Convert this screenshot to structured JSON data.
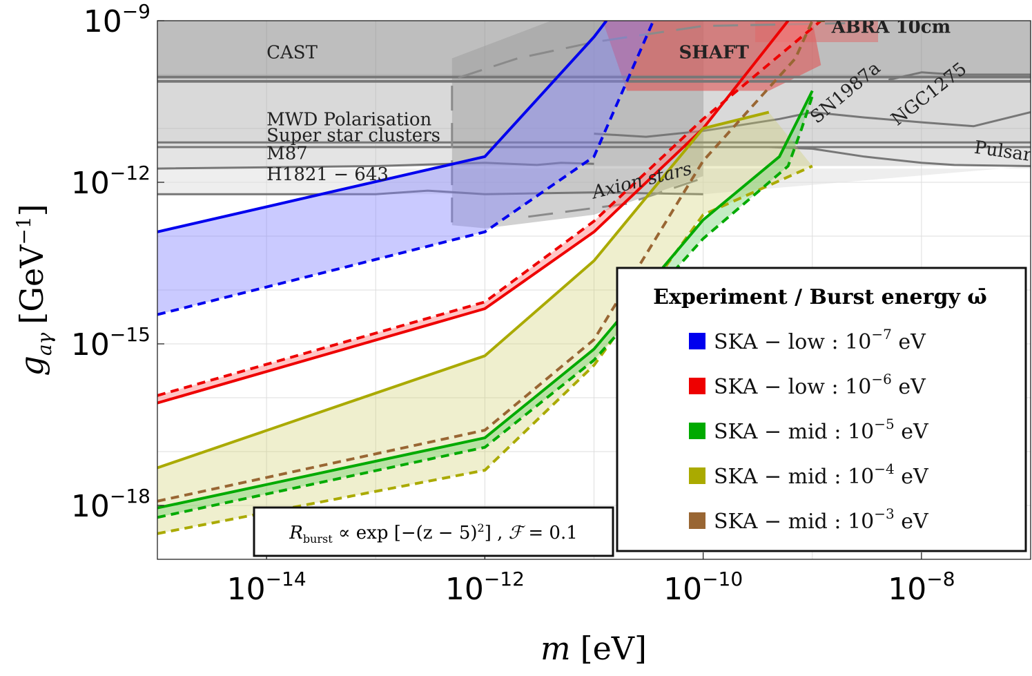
{
  "chart_data": {
    "type": "line",
    "xscale": "log",
    "yscale": "log",
    "xlim": [
      1e-15,
      1e-07
    ],
    "ylim": [
      1e-19,
      1e-09
    ],
    "xlabel_var": "m",
    "xlabel_unit": "[eV]",
    "ylabel_var": "g",
    "ylabel_sub": "aγ",
    "ylabel_unit": "[GeV",
    "ylabel_unit_sup": "−1",
    "ylabel_unit_close": "]",
    "xticks": [
      {
        "value": 1e-14,
        "base": "10",
        "exp": "−14"
      },
      {
        "value": 1e-12,
        "base": "10",
        "exp": "−12"
      },
      {
        "value": 1e-10,
        "base": "10",
        "exp": "−10"
      },
      {
        "value": 1e-08,
        "base": "10",
        "exp": "−8"
      }
    ],
    "yticks": [
      {
        "value": 1e-09,
        "base": "10",
        "exp": "−9"
      },
      {
        "value": 1e-12,
        "base": "10",
        "exp": "−12"
      },
      {
        "value": 1e-15,
        "base": "10",
        "exp": "−15"
      },
      {
        "value": 1e-18,
        "base": "10",
        "exp": "−18"
      }
    ],
    "legend": {
      "title": "Experiment / Burst energy ω̄",
      "position": "lower-right",
      "entries": [
        {
          "label": "SKA − low : 10",
          "exp": "−7",
          "unit": " eV",
          "color": "#0000ee"
        },
        {
          "label": "SKA − low : 10",
          "exp": "−6",
          "unit": " eV",
          "color": "#ee0000"
        },
        {
          "label": "SKA − mid : 10",
          "exp": "−5",
          "unit": " eV",
          "color": "#00aa00"
        },
        {
          "label": "SKA − mid : 10",
          "exp": "−4",
          "unit": " eV",
          "color": "#aaaa00"
        },
        {
          "label": "SKA − mid : 10",
          "exp": "−3",
          "unit": " eV",
          "color": "#996633"
        }
      ]
    },
    "annotation": {
      "R": "R",
      "R_sub": "burst",
      "rest": " ∝ exp [−(z − 5)",
      "sq": "2",
      "close": "]  ,  ",
      "F": "ℱ",
      "Frest": " = 0.1"
    },
    "series": [
      {
        "name": "SKA − low : 10^−7 eV",
        "color": "#0000ee",
        "style": "solid",
        "x": [
          1e-15,
          1e-12,
          1e-11,
          1.3e-11
        ],
        "y": [
          1.2e-13,
          3e-12,
          5e-10,
          1e-09
        ]
      },
      {
        "name": "SKA − low : 10^−7 eV",
        "color": "#0000ee",
        "style": "dashed",
        "x": [
          1e-15,
          1e-12,
          1e-11,
          3.5e-11
        ],
        "y": [
          3.5e-15,
          1.2e-13,
          3e-12,
          1e-09
        ]
      },
      {
        "name": "SKA − low : 10^−6 eV",
        "color": "#ee0000",
        "style": "solid",
        "x": [
          1e-15,
          1e-12,
          1e-11,
          1e-10,
          6e-10
        ],
        "y": [
          8e-17,
          4.5e-15,
          1.2e-13,
          1e-11,
          1e-09
        ]
      },
      {
        "name": "SKA − low : 10^−6 eV",
        "color": "#ee0000",
        "style": "dashed",
        "x": [
          1e-15,
          1e-12,
          1e-11,
          1e-10,
          1.2e-09
        ],
        "y": [
          1.1e-16,
          6e-15,
          1.9e-13,
          1.5e-11,
          1e-09
        ]
      },
      {
        "name": "SKA − mid : 10^−4 eV",
        "color": "#aaaa00",
        "style": "solid",
        "x": [
          1e-15,
          1e-12,
          1e-11,
          1e-10,
          4e-10
        ],
        "y": [
          5e-18,
          6e-16,
          3.5e-14,
          1e-11,
          2e-11
        ]
      },
      {
        "name": "SKA − mid : 10^−4 eV",
        "color": "#aaaa00",
        "style": "dashed",
        "x": [
          1e-15,
          1e-12,
          1e-11,
          1e-10,
          1e-09
        ],
        "y": [
          3e-19,
          4.5e-18,
          4e-16,
          2.5e-13,
          2e-12
        ]
      },
      {
        "name": "SKA − mid : 10^−3 eV",
        "color": "#996633",
        "style": "dashed",
        "x": [
          1e-15,
          1e-12,
          1e-11,
          1e-10,
          7e-10,
          1e-09,
          1.3e-09
        ],
        "y": [
          1.2e-18,
          2.5e-17,
          1.2e-15,
          2.5e-12,
          2e-10,
          1e-09,
          1e-09
        ]
      },
      {
        "name": "SKA − mid : 10^−5 eV",
        "color": "#00aa00",
        "style": "solid",
        "x": [
          1e-15,
          1e-12,
          1e-11,
          1e-10,
          5e-10,
          8e-10,
          1e-09
        ],
        "y": [
          9e-19,
          1.8e-17,
          8e-16,
          2e-13,
          3e-12,
          2e-11,
          5e-11
        ]
      },
      {
        "name": "SKA − mid : 10^−5 eV",
        "color": "#00aa00",
        "style": "dashed",
        "x": [
          1e-15,
          1e-12,
          1e-11,
          1e-10,
          6e-10,
          8e-10,
          1e-09
        ],
        "y": [
          6e-19,
          1.2e-17,
          5e-16,
          9e-14,
          2e-12,
          1e-11,
          4e-11
        ]
      }
    ],
    "bands": [
      {
        "color": "#8080ff",
        "opacity": 0.42,
        "upper": {
          "x": [
            1e-15,
            1e-12,
            1e-11,
            1.3e-11
          ],
          "y": [
            1.2e-13,
            3e-12,
            5e-10,
            1e-09
          ]
        },
        "lower": {
          "x": [
            1e-15,
            1e-12,
            1e-11,
            3.5e-11
          ],
          "y": [
            3.5e-15,
            1.2e-13,
            3e-12,
            1e-09
          ]
        }
      },
      {
        "color": "#ff8080",
        "opacity": 0.45,
        "upper": {
          "x": [
            1e-15,
            1e-12,
            1e-11,
            1e-10,
            1.2e-09
          ],
          "y": [
            1.1e-16,
            6e-15,
            1.9e-13,
            1.5e-11,
            1e-09
          ]
        },
        "lower": {
          "x": [
            1e-15,
            1e-12,
            1e-11,
            1e-10,
            6e-10
          ],
          "y": [
            8e-17,
            4.5e-15,
            1.2e-13,
            1e-11,
            1e-09
          ]
        }
      },
      {
        "color": "#cccc66",
        "opacity": 0.32,
        "upper": {
          "x": [
            1e-15,
            1e-12,
            1e-11,
            1e-10,
            4e-10
          ],
          "y": [
            5e-18,
            6e-16,
            3.5e-14,
            1e-11,
            2e-11
          ]
        },
        "lower": {
          "x": [
            1e-15,
            1e-12,
            1e-11,
            1e-10,
            1e-09
          ],
          "y": [
            3e-19,
            4.5e-18,
            4e-16,
            2.5e-13,
            2e-12
          ]
        }
      },
      {
        "color": "#55cc55",
        "opacity": 0.35,
        "upper": {
          "x": [
            1e-15,
            1e-12,
            1e-11,
            1e-10,
            5e-10,
            8e-10,
            1e-09
          ],
          "y": [
            9e-19,
            1.8e-17,
            8e-16,
            2e-13,
            3e-12,
            2e-11,
            5e-11
          ]
        },
        "lower": {
          "x": [
            1e-15,
            1e-12,
            1e-11,
            1e-10,
            6e-10,
            8e-10,
            1e-09
          ],
          "y": [
            6e-19,
            1.2e-17,
            5e-16,
            9e-14,
            2e-12,
            1e-11,
            4e-11
          ]
        }
      }
    ],
    "exclusions": [
      {
        "name": "CAST",
        "label": "CAST",
        "bold": false,
        "color": "#888888",
        "opacity": 0.55,
        "region": {
          "x": [
            1e-15,
            1e-07,
            1e-07,
            1e-15
          ],
          "y": [
            9e-11,
            9e-11,
            1e-09,
            1e-09
          ]
        },
        "label_at": {
          "x": 1e-14,
          "y": 2e-10
        }
      },
      {
        "name": "MWD Polarisation",
        "label": "MWD Polarisation",
        "bold": false,
        "color": "#aaaaaa",
        "opacity": 0.45,
        "region": {
          "x": [
            1e-15,
            1e-07,
            1e-07,
            1e-15
          ],
          "y": [
            5e-12,
            5e-12,
            9e-11,
            9e-11
          ]
        },
        "label_at": {
          "x": 1e-14,
          "y": 1.15e-11
        }
      },
      {
        "name": "Super star clusters",
        "label": "Super star clusters",
        "bold": false,
        "color": "#aaaaaa",
        "opacity": 0.0,
        "region": {
          "x": [],
          "y": []
        },
        "label_at": {
          "x": 1e-14,
          "y": 5.8e-12
        }
      },
      {
        "name": "M87",
        "label": "M87",
        "bold": false,
        "color": "#bbbbbb",
        "opacity": 0.4,
        "region": {
          "x": [
            1e-15,
            1e-12,
            1e-07,
            1e-07,
            1e-15
          ],
          "y": [
            1.8e-12,
            2e-12,
            2e-12,
            5e-12,
            5e-12
          ]
        },
        "label_at": {
          "x": 1e-14,
          "y": 2.7e-12
        }
      },
      {
        "name": "H1821 − 643",
        "label": "H1821 − 643",
        "bold": false,
        "color": "#dddddd",
        "opacity": 0.5,
        "region": {
          "x": [
            1e-15,
            1e-12,
            1e-10,
            1e-07,
            1e-07,
            1e-15
          ],
          "y": [
            6e-13,
            6e-13,
            6e-13,
            2e-12,
            1.8e-12,
            1.8e-12
          ]
        },
        "label_at": {
          "x": 1e-14,
          "y": 1.1e-12
        }
      },
      {
        "name": "Axion stars",
        "label": "Axion stars",
        "bold": false,
        "italic": true,
        "color": "#999999",
        "opacity": 0.45,
        "region": {
          "x": [
            5e-13,
            1e-12,
            1e-11,
            1e-10,
            1e-10,
            1e-11,
            5e-13
          ],
          "y": [
            1.6e-13,
            1.4e-13,
            2.5e-13,
            1.3e-12,
            2e-09,
            2e-09,
            2e-10
          ]
        },
        "label_at": {
          "x": 1e-11,
          "y": 5e-13
        }
      },
      {
        "name": "SHAFT",
        "label": "SHAFT",
        "bold": true,
        "color": "#e05555",
        "opacity": 0.6,
        "region": {
          "x": [
            1.2e-11,
            1e-09,
            1.2e-09,
            4e-10,
            2e-11
          ],
          "y": [
            1e-09,
            1e-09,
            1.5e-10,
            5e-11,
            5e-11
          ]
        },
        "label_at": {
          "x": 6e-11,
          "y": 2e-10
        }
      },
      {
        "name": "ABRA 10cm",
        "label": "ABRA 10cm",
        "bold": true,
        "color": "#e06666",
        "opacity": 0.5,
        "region": {
          "x": [
            3e-10,
            4e-09,
            4e-09,
            3e-10
          ],
          "y": [
            4e-10,
            4e-10,
            1e-09,
            1e-09
          ]
        },
        "label_at": {
          "x": 1.5e-09,
          "y": 6e-10
        }
      },
      {
        "name": "SN1987a",
        "label": "SN1987a",
        "bold": false,
        "color": "#bbbbbb",
        "opacity": 0.0,
        "region": {
          "x": [],
          "y": []
        },
        "label_at": {
          "x": 1.1e-09,
          "y": 1.2e-11
        }
      },
      {
        "name": "NGC1275",
        "label": "NGC1275",
        "bold": false,
        "color": "#bbbbbb",
        "opacity": 0.0,
        "region": {
          "x": [],
          "y": []
        },
        "label_at": {
          "x": 6e-09,
          "y": 1.1e-11
        }
      },
      {
        "name": "Pulsars",
        "label": "Pulsars",
        "bold": false,
        "color": "#bbbbbb",
        "opacity": 0.0,
        "region": {
          "x": [],
          "y": []
        },
        "label_at": {
          "x": 3e-08,
          "y": 3.5e-12
        }
      }
    ]
  }
}
